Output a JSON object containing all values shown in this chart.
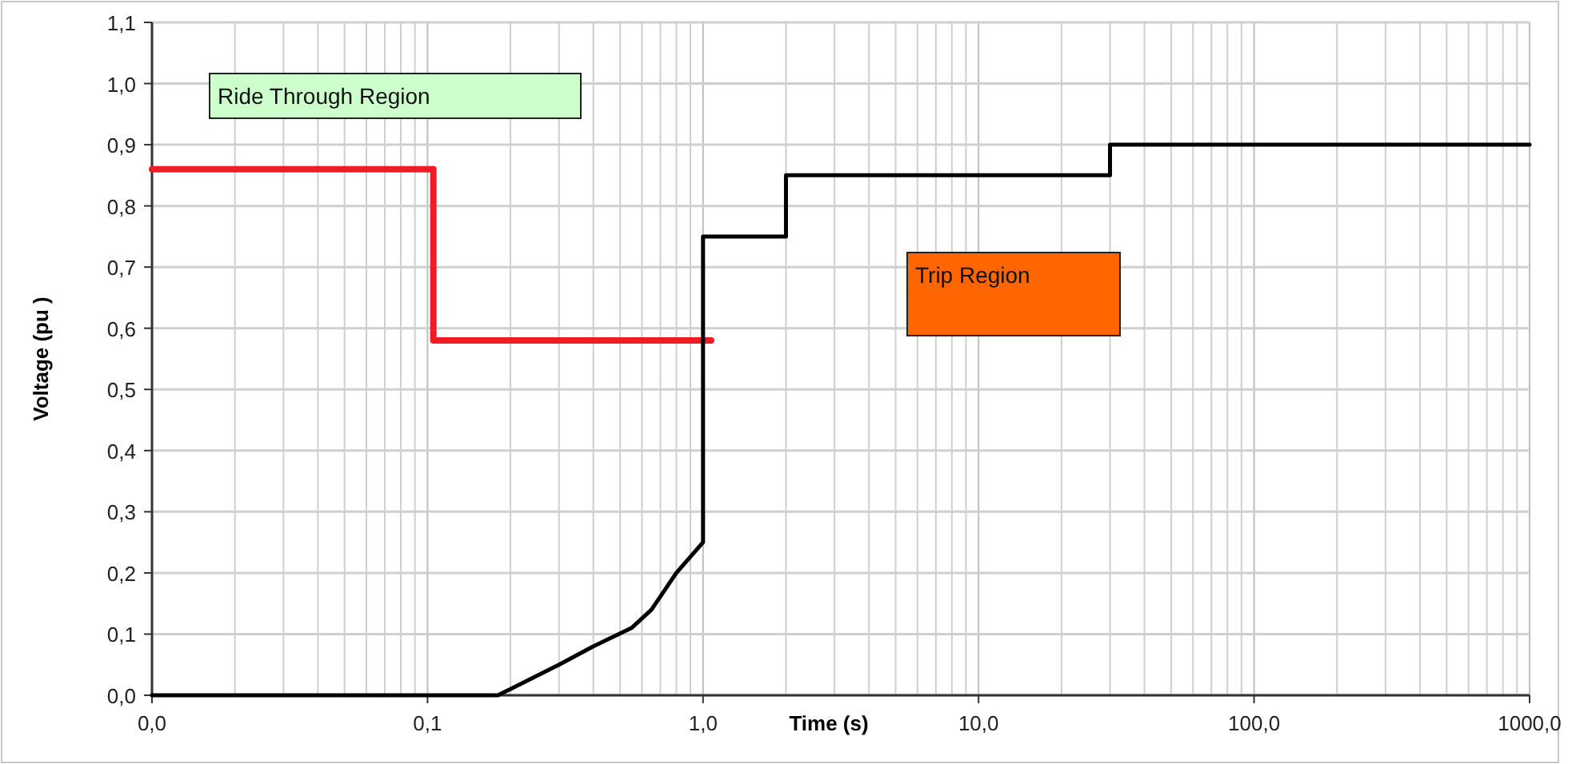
{
  "chart_data": {
    "type": "line",
    "xlabel": "Time (s)",
    "ylabel": "Voltage (pu )",
    "log": "x",
    "grid": true,
    "xlim": [
      0.01,
      1000
    ],
    "xticks": [
      {
        "value": 0.01,
        "label": "0,0"
      },
      {
        "value": 0.1,
        "label": "0,1"
      },
      {
        "value": 1,
        "label": "1,0"
      },
      {
        "value": 10,
        "label": "10,0"
      },
      {
        "value": 100,
        "label": "100,0"
      },
      {
        "value": 1000,
        "label": "1000,0"
      }
    ],
    "ylim": [
      0,
      1.1
    ],
    "yticks": [
      {
        "value": 0,
        "label": "0,0"
      },
      {
        "value": 0.1,
        "label": "0,1"
      },
      {
        "value": 0.2,
        "label": "0,2"
      },
      {
        "value": 0.3,
        "label": "0,3"
      },
      {
        "value": 0.4,
        "label": "0,4"
      },
      {
        "value": 0.5,
        "label": "0,5"
      },
      {
        "value": 0.6,
        "label": "0,6"
      },
      {
        "value": 0.7,
        "label": "0,7"
      },
      {
        "value": 0.8,
        "label": "0,8"
      },
      {
        "value": 0.9,
        "label": "0,9"
      },
      {
        "value": 1.0,
        "label": "1,0"
      },
      {
        "value": 1.1,
        "label": "1,1"
      }
    ],
    "series": [
      {
        "color": "#ee1c25",
        "x": [
          0.01,
          0.105,
          0.105,
          1.07
        ],
        "values": [
          0.86,
          0.86,
          0.58,
          0.58
        ]
      },
      {
        "color": "#000000",
        "x": [
          0.01,
          0.18,
          0.2,
          0.3,
          0.4,
          0.55,
          0.65,
          0.8,
          1.0,
          1.0,
          2.0,
          2.0,
          30,
          30,
          1000
        ],
        "values": [
          0,
          0,
          0.01,
          0.05,
          0.08,
          0.11,
          0.14,
          0.2,
          0.25,
          0.75,
          0.75,
          0.85,
          0.85,
          0.9,
          0.9
        ]
      }
    ],
    "annotations": [
      "Ride Through Region",
      "Trip Region"
    ]
  }
}
